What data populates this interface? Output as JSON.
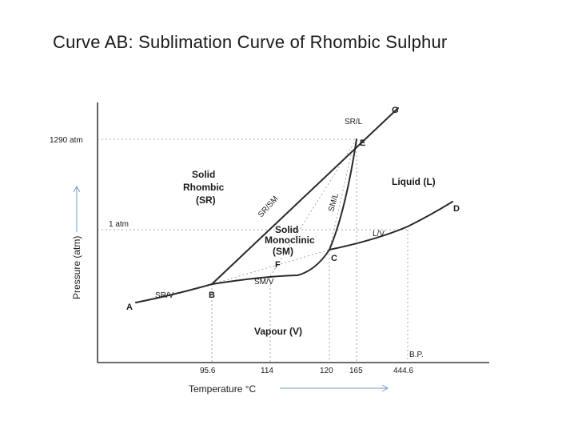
{
  "title": "Curve AB: Sublimation Curve of Rhombic Sulphur",
  "diagram": {
    "y_axis_label": "Pressure (atm)",
    "x_axis_label": "Temperature °C",
    "pressure_ticks": [
      "1290 atm",
      "1 atm"
    ],
    "temperature_ticks": [
      "95.6",
      "114",
      "120",
      "165",
      "444.6"
    ],
    "bp_label": "B.P.",
    "regions": {
      "solid_rhombic": [
        "Solid",
        "Rhombic",
        "(SR)"
      ],
      "solid_monoclinic": [
        "Solid",
        "Monoclinic",
        "(SM)"
      ],
      "liquid": "Liquid (L)",
      "vapour": "Vapour (V)"
    },
    "curve_labels": {
      "sr_l": "SR/L",
      "sr_sm": "SR/SM",
      "sm_l": "SM/L",
      "l_v": "L/V",
      "sr_v": "SR/V",
      "sm_v": "SM/V"
    },
    "points": {
      "A": "A",
      "B": "B",
      "C": "C",
      "D": "D",
      "E": "E",
      "F": "F",
      "G": "G"
    }
  }
}
